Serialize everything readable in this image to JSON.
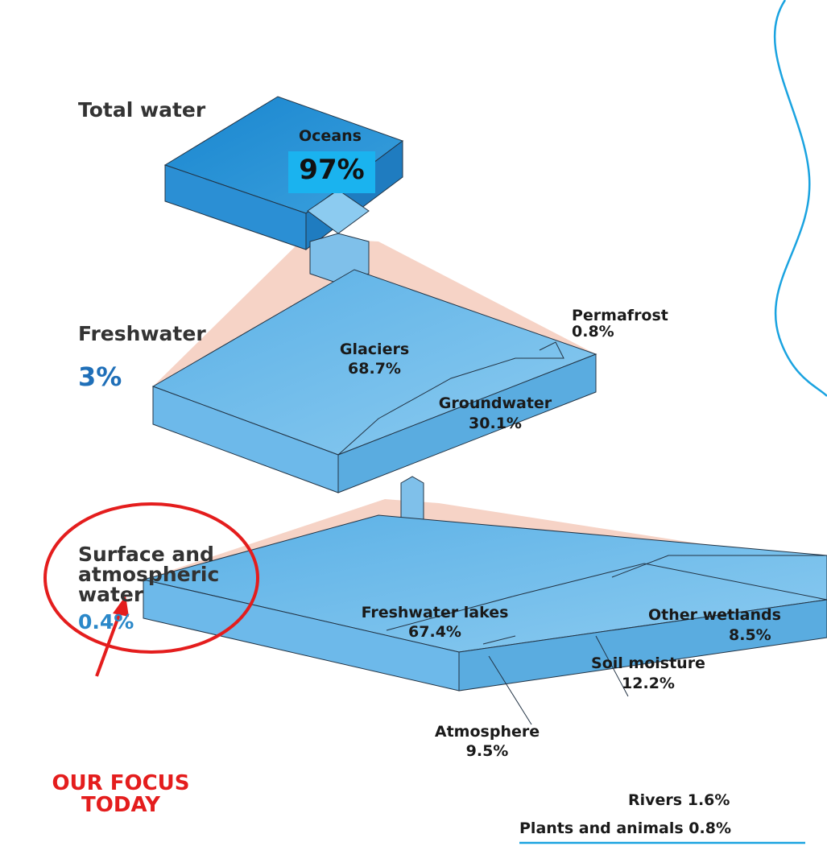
{
  "levels": [
    {
      "title": "Total water",
      "items": [
        {
          "label": "Oceans",
          "value": "97%"
        }
      ]
    },
    {
      "title": "Freshwater",
      "share": "3%",
      "items": [
        {
          "label": "Glaciers",
          "value": "68.7%"
        },
        {
          "label": "Groundwater",
          "value": "30.1%"
        },
        {
          "label": "Permafrost",
          "value": "0.8%"
        }
      ]
    },
    {
      "title": "Surface and atmospheric water",
      "share": "0.4%",
      "items": [
        {
          "label": "Freshwater lakes",
          "value": "67.4%"
        },
        {
          "label": "Other wetlands",
          "value": "8.5%"
        },
        {
          "label": "Soil moisture",
          "value": "12.2%"
        },
        {
          "label": "Atmosphere",
          "value": "9.5%"
        },
        {
          "label": "Rivers",
          "value": "1.6%"
        },
        {
          "label": "Plants and animals",
          "value": "0.8%"
        }
      ]
    }
  ],
  "annotation": "OUR FOCUS TODAY"
}
